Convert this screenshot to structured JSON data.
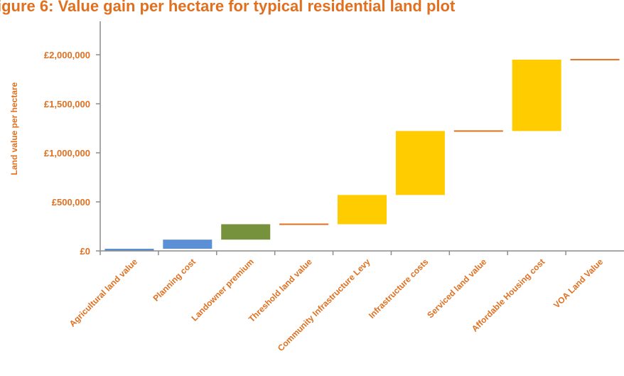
{
  "colors": {
    "text": "#E07020",
    "axis": "#8C8C8C",
    "blue": "#5B8FD6",
    "green": "#76923C",
    "yellow": "#FFCC00",
    "line": "#E07020"
  },
  "chart_data": {
    "type": "bar",
    "subtype": "waterfall",
    "title": "igure 6: Value gain per hectare for typical residential land plot",
    "ylabel": "Land value per hectare",
    "xlabel": "",
    "ylim": [
      0,
      2000000
    ],
    "yticks": [
      0,
      500000,
      1000000,
      1500000,
      2000000
    ],
    "ytick_labels": [
      "£0",
      "£500,000",
      "£1,000,000",
      "£1,500,000",
      "£2,000,000"
    ],
    "grid": false,
    "categories": [
      "Agricultural land value",
      "Planning cost",
      "Landowner premium",
      "Threshold land value",
      "Community Infrastructure Levy",
      "Infrastructure costs",
      "Serviced land value",
      "Affordable Housing cost",
      "VOA Land Value"
    ],
    "bars": [
      {
        "category": "Agricultural land value",
        "start": 0,
        "end": 22000,
        "kind": "bar",
        "color": "blue"
      },
      {
        "category": "Planning cost",
        "start": 22000,
        "end": 115000,
        "kind": "bar",
        "color": "blue"
      },
      {
        "category": "Landowner premium",
        "start": 115000,
        "end": 272000,
        "kind": "bar",
        "color": "green"
      },
      {
        "category": "Threshold land value",
        "start": 272000,
        "end": 272000,
        "kind": "line",
        "color": "line"
      },
      {
        "category": "Community Infrastructure Levy",
        "start": 272000,
        "end": 570000,
        "kind": "bar",
        "color": "yellow"
      },
      {
        "category": "Infrastructure costs",
        "start": 570000,
        "end": 1222000,
        "kind": "bar",
        "color": "yellow"
      },
      {
        "category": "Serviced land value",
        "start": 1222000,
        "end": 1222000,
        "kind": "line",
        "color": "line"
      },
      {
        "category": "Affordable Housing cost",
        "start": 1222000,
        "end": 1950000,
        "kind": "bar",
        "color": "yellow"
      },
      {
        "category": "VOA Land Value",
        "start": 1950000,
        "end": 1950000,
        "kind": "line",
        "color": "line"
      }
    ]
  }
}
